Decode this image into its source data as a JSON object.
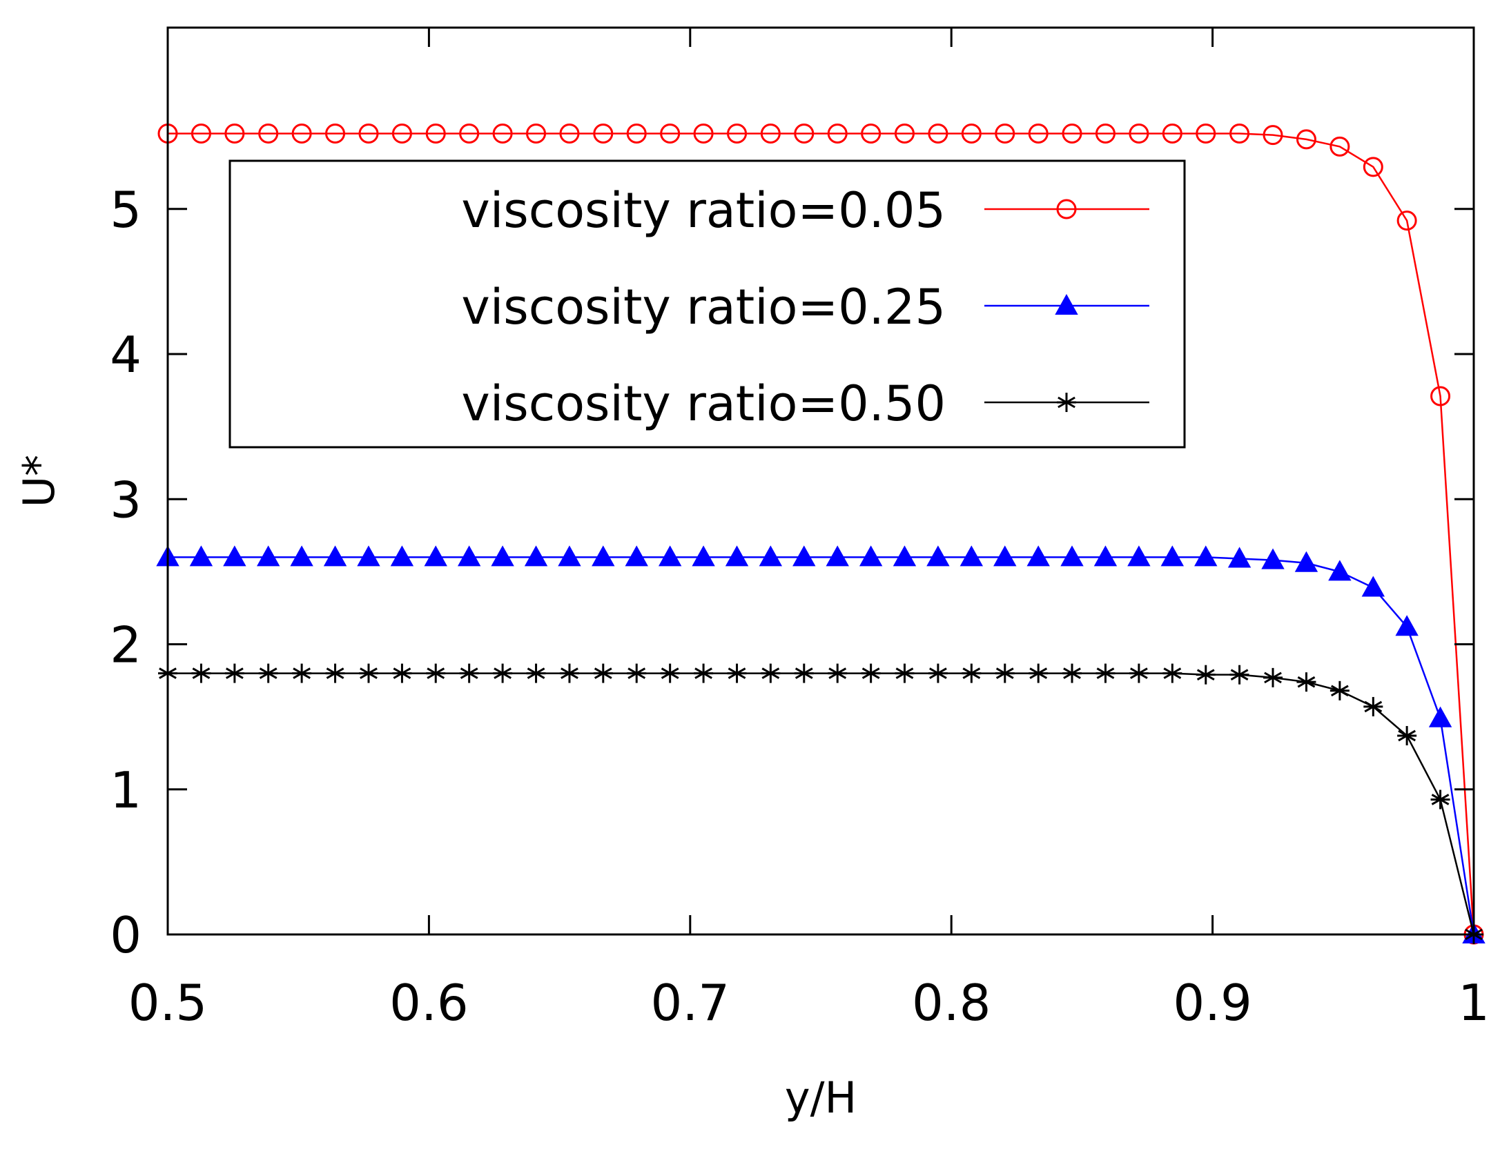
{
  "chart_data": {
    "type": "line",
    "xlabel": "y/H",
    "ylabel": "U*",
    "xlim": [
      0.5,
      1.0
    ],
    "ylim": [
      0,
      6.25
    ],
    "xticks": [
      {
        "value": 0.5,
        "label": "0.5"
      },
      {
        "value": 0.6,
        "label": "0.6"
      },
      {
        "value": 0.7,
        "label": "0.7"
      },
      {
        "value": 0.8,
        "label": "0.8"
      },
      {
        "value": 0.9,
        "label": "0.9"
      },
      {
        "value": 1.0,
        "label": "1"
      }
    ],
    "yticks": [
      {
        "value": 0,
        "label": "0"
      },
      {
        "value": 1,
        "label": "1"
      },
      {
        "value": 2,
        "label": "2"
      },
      {
        "value": 3,
        "label": "3"
      },
      {
        "value": 4,
        "label": "4"
      },
      {
        "value": 5,
        "label": "5"
      }
    ],
    "grid": false,
    "legend_position": "upper-center",
    "x": [
      0.5,
      0.5128,
      0.5256,
      0.5385,
      0.5513,
      0.5641,
      0.5769,
      0.5897,
      0.6026,
      0.6154,
      0.6282,
      0.641,
      0.6538,
      0.6667,
      0.6795,
      0.6923,
      0.7051,
      0.7179,
      0.7308,
      0.7436,
      0.7564,
      0.7692,
      0.7821,
      0.7949,
      0.8077,
      0.8205,
      0.8333,
      0.8462,
      0.859,
      0.8718,
      0.8846,
      0.8974,
      0.9103,
      0.9231,
      0.9359,
      0.9487,
      0.9615,
      0.9744,
      0.9872,
      1.0
    ],
    "series": [
      {
        "name": "viscosity ratio=0.05",
        "color": "#ff0000",
        "marker": "open-circle",
        "values": [
          5.52,
          5.52,
          5.52,
          5.52,
          5.52,
          5.52,
          5.52,
          5.52,
          5.52,
          5.52,
          5.52,
          5.52,
          5.52,
          5.52,
          5.52,
          5.52,
          5.52,
          5.52,
          5.52,
          5.52,
          5.52,
          5.52,
          5.52,
          5.52,
          5.52,
          5.52,
          5.52,
          5.52,
          5.52,
          5.52,
          5.52,
          5.52,
          5.52,
          5.51,
          5.48,
          5.43,
          5.29,
          4.92,
          3.71,
          0.0
        ]
      },
      {
        "name": "viscosity ratio=0.25",
        "color": "#0000ff",
        "marker": "filled-triangle",
        "values": [
          2.6,
          2.6,
          2.6,
          2.6,
          2.6,
          2.6,
          2.6,
          2.6,
          2.6,
          2.6,
          2.6,
          2.6,
          2.6,
          2.6,
          2.6,
          2.6,
          2.6,
          2.6,
          2.6,
          2.6,
          2.6,
          2.6,
          2.6,
          2.6,
          2.6,
          2.6,
          2.6,
          2.6,
          2.6,
          2.6,
          2.6,
          2.6,
          2.59,
          2.58,
          2.56,
          2.5,
          2.39,
          2.12,
          1.49,
          0.0
        ]
      },
      {
        "name": "viscosity ratio=0.50",
        "color": "#000000",
        "marker": "asterisk",
        "values": [
          1.8,
          1.8,
          1.8,
          1.8,
          1.8,
          1.8,
          1.8,
          1.8,
          1.8,
          1.8,
          1.8,
          1.8,
          1.8,
          1.8,
          1.8,
          1.8,
          1.8,
          1.8,
          1.8,
          1.8,
          1.8,
          1.8,
          1.8,
          1.8,
          1.8,
          1.8,
          1.8,
          1.8,
          1.8,
          1.8,
          1.8,
          1.79,
          1.79,
          1.77,
          1.74,
          1.68,
          1.57,
          1.37,
          0.93,
          0.0
        ]
      }
    ]
  }
}
